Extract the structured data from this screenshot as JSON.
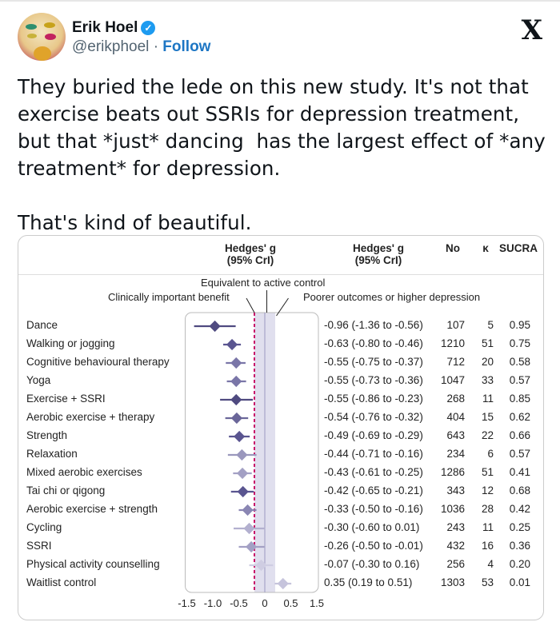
{
  "header": {
    "name": "Erik Hoel",
    "handle": "@erikphoel",
    "separator": "·",
    "follow_label": "Follow",
    "verified_icon": "verified-badge-icon",
    "logo": "X",
    "colors": {
      "follow": "#1d76c4",
      "verified": "#1d9bf0"
    }
  },
  "tweet": {
    "text": "They buried the lede on this new study. It's not that exercise beats out SSRIs for depression treatment, but that *just* dancing  has the largest effect of *any treatment* for depression.\n\nThat's kind of beautiful."
  },
  "figure": {
    "col_headers": {
      "plot": "Hedges' g\n(95% CrI)",
      "estimate": "Hedges' g\n(95% CrI)",
      "no": "No",
      "k": "κ",
      "sucra": "SUCRA"
    },
    "annotations": {
      "equivalent": "Equivalent to active control",
      "benefit": "Clinically important benefit",
      "poorer": "Poorer outcomes or higher depression"
    },
    "tick_labels": [
      "-1.5",
      "-1.0",
      "-0.5",
      "0",
      "0.5",
      "1.5"
    ]
  },
  "chart_data": {
    "type": "forest",
    "reference_lines": {
      "clinically_important_benefit": -0.2,
      "null": 0,
      "equivalence_band": [
        -0.2,
        0.2
      ]
    },
    "rows": [
      {
        "label": "Dance",
        "g": -0.96,
        "lo": -1.36,
        "hi": -0.56,
        "text": "-0.96 (-1.36 to -0.56)",
        "no": "107",
        "k": "5",
        "sucra": "0.95",
        "color": "#4f4a80"
      },
      {
        "label": "Walking or jogging",
        "g": -0.63,
        "lo": -0.8,
        "hi": -0.46,
        "text": "-0.63 (-0.80 to -0.46)",
        "no": "1210",
        "k": "51",
        "sucra": "0.75",
        "color": "#5a5590"
      },
      {
        "label": "Cognitive behavioural therapy",
        "g": -0.55,
        "lo": -0.75,
        "hi": -0.37,
        "text": "-0.55 (-0.75 to -0.37)",
        "no": "712",
        "k": "20",
        "sucra": "0.58",
        "color": "#7a76a8"
      },
      {
        "label": "Yoga",
        "g": -0.55,
        "lo": -0.73,
        "hi": -0.36,
        "text": "-0.55 (-0.73 to -0.36)",
        "no": "1047",
        "k": "33",
        "sucra": "0.57",
        "color": "#7a76a8"
      },
      {
        "label": "Exercise + SSRI",
        "g": -0.55,
        "lo": -0.86,
        "hi": -0.23,
        "text": "-0.55 (-0.86 to -0.23)",
        "no": "268",
        "k": "11",
        "sucra": "0.85",
        "color": "#4f4a80"
      },
      {
        "label": "Aerobic exercise + therapy",
        "g": -0.54,
        "lo": -0.76,
        "hi": -0.32,
        "text": "-0.54 (-0.76 to -0.32)",
        "no": "404",
        "k": "15",
        "sucra": "0.62",
        "color": "#6a6699"
      },
      {
        "label": "Strength",
        "g": -0.49,
        "lo": -0.69,
        "hi": -0.29,
        "text": "-0.49 (-0.69 to -0.29)",
        "no": "643",
        "k": "22",
        "sucra": "0.66",
        "color": "#5a5590"
      },
      {
        "label": "Relaxation",
        "g": -0.44,
        "lo": -0.71,
        "hi": -0.16,
        "text": "-0.44 (-0.71 to -0.16)",
        "no": "234",
        "k": "6",
        "sucra": "0.57",
        "color": "#9a97bd"
      },
      {
        "label": "Mixed aerobic exercises",
        "g": -0.43,
        "lo": -0.61,
        "hi": -0.25,
        "text": "-0.43 (-0.61 to -0.25)",
        "no": "1286",
        "k": "51",
        "sucra": "0.41",
        "color": "#a3a0c4"
      },
      {
        "label": "Tai chi or qigong",
        "g": -0.42,
        "lo": -0.65,
        "hi": -0.21,
        "text": "-0.42 (-0.65 to -0.21)",
        "no": "343",
        "k": "12",
        "sucra": "0.68",
        "color": "#5a5590"
      },
      {
        "label": "Aerobic exercise + strength",
        "g": -0.33,
        "lo": -0.5,
        "hi": -0.16,
        "text": "-0.33 (-0.50 to -0.16)",
        "no": "1036",
        "k": "28",
        "sucra": "0.42",
        "color": "#8a86b3"
      },
      {
        "label": "Cycling",
        "g": -0.3,
        "lo": -0.6,
        "hi": 0.01,
        "text": "-0.30 (-0.60 to 0.01)",
        "no": "243",
        "k": "11",
        "sucra": "0.25",
        "color": "#b3b0cf"
      },
      {
        "label": "SSRI",
        "g": -0.26,
        "lo": -0.5,
        "hi": -0.01,
        "text": "-0.26 (-0.50 to -0.01)",
        "no": "432",
        "k": "16",
        "sucra": "0.36",
        "color": "#a3a0c4"
      },
      {
        "label": "Physical activity counselling",
        "g": -0.07,
        "lo": -0.3,
        "hi": 0.16,
        "text": "-0.07 (-0.30 to 0.16)",
        "no": "256",
        "k": "4",
        "sucra": "0.20",
        "color": "#cfcde2"
      },
      {
        "label": "Waitlist control",
        "g": 0.35,
        "lo": 0.19,
        "hi": 0.51,
        "text": "0.35 (0.19 to 0.51)",
        "no": "1303",
        "k": "53",
        "sucra": "0.01",
        "color": "#c6c4dc"
      }
    ]
  }
}
